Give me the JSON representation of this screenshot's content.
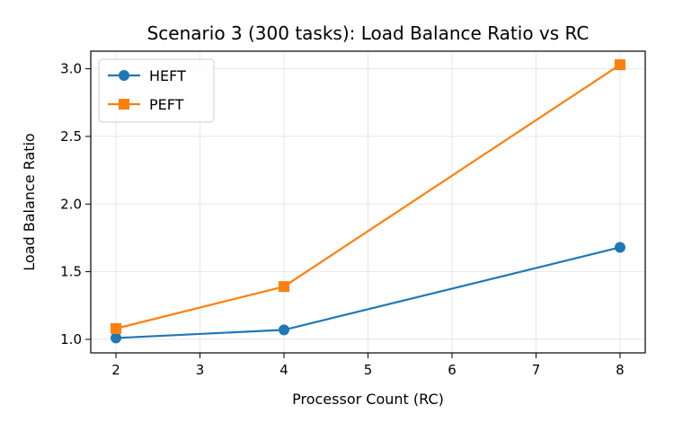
{
  "chart_data": {
    "type": "line",
    "title": "Scenario 3 (300 tasks): Load Balance Ratio vs RC",
    "xlabel": "Processor Count (RC)",
    "ylabel": "Load Balance Ratio",
    "x": [
      2,
      4,
      8
    ],
    "xlim": [
      1.7,
      8.3
    ],
    "ylim": [
      0.9,
      3.13
    ],
    "xticks": [
      2,
      3,
      4,
      5,
      6,
      7,
      8
    ],
    "yticks": [
      "1.0",
      "1.5",
      "2.0",
      "2.5",
      "3.0"
    ],
    "grid": true,
    "legend_position": "upper-left",
    "series": [
      {
        "name": "HEFT",
        "values": [
          1.01,
          1.07,
          1.68
        ],
        "color": "#1f77b4",
        "marker": "circle"
      },
      {
        "name": "PEFT",
        "values": [
          1.08,
          1.39,
          3.03
        ],
        "color": "#ff7f0e",
        "marker": "square"
      }
    ]
  }
}
